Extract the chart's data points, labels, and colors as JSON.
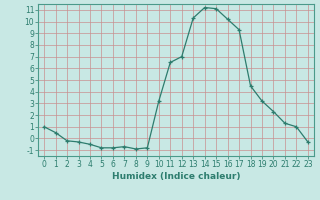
{
  "x": [
    0,
    1,
    2,
    3,
    4,
    5,
    6,
    7,
    8,
    9,
    10,
    11,
    12,
    13,
    14,
    15,
    16,
    17,
    18,
    19,
    20,
    21,
    22,
    23
  ],
  "y": [
    1,
    0.5,
    -0.2,
    -0.3,
    -0.5,
    -0.8,
    -0.8,
    -0.7,
    -0.9,
    -0.8,
    3.2,
    6.5,
    7.0,
    10.3,
    11.2,
    11.1,
    10.2,
    9.3,
    4.5,
    3.2,
    2.3,
    1.3,
    1.0,
    -0.3
  ],
  "line_color": "#2d7d6e",
  "marker": "+",
  "marker_size": 3,
  "bg_color": "#c8e8e4",
  "grid_color": "#b0d0cc",
  "xlabel": "Humidex (Indice chaleur)",
  "ylim": [
    -1.5,
    11.5
  ],
  "xlim": [
    -0.5,
    23.5
  ],
  "yticks": [
    -1,
    0,
    1,
    2,
    3,
    4,
    5,
    6,
    7,
    8,
    9,
    10,
    11
  ],
  "xticks": [
    0,
    1,
    2,
    3,
    4,
    5,
    6,
    7,
    8,
    9,
    10,
    11,
    12,
    13,
    14,
    15,
    16,
    17,
    18,
    19,
    20,
    21,
    22,
    23
  ],
  "tick_color": "#2d7d6e",
  "label_fontsize": 6.5,
  "tick_fontsize": 5.5,
  "axis_color": "#2d7d6e",
  "spine_color": "#4a9a8a"
}
